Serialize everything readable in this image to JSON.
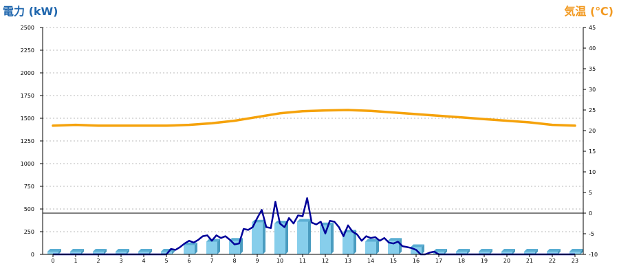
{
  "chart_data": {
    "type": "bar",
    "y_left_label": "電力 (kW)",
    "y_right_label": "気温 (℃)",
    "x_ticks": [
      0,
      1,
      2,
      3,
      4,
      5,
      6,
      7,
      8,
      9,
      10,
      11,
      12,
      13,
      14,
      15,
      16,
      17,
      18,
      19,
      20,
      21,
      22,
      23
    ],
    "y_left_ticks": [
      0,
      250,
      500,
      750,
      1000,
      1250,
      1500,
      1750,
      2000,
      2250,
      2500
    ],
    "y_right_ticks": [
      -10,
      -5,
      0,
      5,
      10,
      15,
      20,
      25,
      30,
      35,
      40,
      45
    ],
    "y_left_range": [
      0,
      2500
    ],
    "y_right_range": [
      -10,
      45
    ],
    "grid": true,
    "series": [
      {
        "values": [
          0,
          0,
          0,
          0,
          0,
          0,
          100,
          140,
          150,
          350,
          340,
          360,
          320,
          240,
          140,
          150,
          80,
          0,
          0,
          0,
          0,
          0,
          0,
          0
        ],
        "color": "#87ceeb"
      },
      {
        "x": [
          0,
          0.5,
          1,
          1.5,
          2,
          2.5,
          3,
          3.5,
          4,
          4.5,
          5,
          5.2,
          5.4,
          5.6,
          5.8,
          6.0,
          6.2,
          6.4,
          6.6,
          6.8,
          7.0,
          7.2,
          7.4,
          7.6,
          7.8,
          8.0,
          8.2,
          8.4,
          8.6,
          8.8,
          9.0,
          9.2,
          9.4,
          9.6,
          9.8,
          10.0,
          10.2,
          10.4,
          10.6,
          10.8,
          11.0,
          11.2,
          11.4,
          11.6,
          11.8,
          12.0,
          12.2,
          12.4,
          12.6,
          12.8,
          13.0,
          13.2,
          13.4,
          13.6,
          13.8,
          14.0,
          14.2,
          14.4,
          14.6,
          14.8,
          15.0,
          15.2,
          15.4,
          15.6,
          15.8,
          16.0,
          16.2,
          16.4,
          16.6,
          16.8,
          17.0,
          17.2,
          17.4,
          17.6,
          18,
          19,
          20,
          21,
          22,
          23
        ],
        "values": [
          0,
          0,
          0,
          0,
          0,
          0,
          0,
          0,
          0,
          0,
          0,
          60,
          50,
          80,
          120,
          150,
          130,
          160,
          200,
          210,
          150,
          210,
          180,
          200,
          160,
          110,
          120,
          280,
          270,
          300,
          400,
          490,
          300,
          290,
          580,
          340,
          300,
          400,
          340,
          430,
          420,
          620,
          350,
          330,
          360,
          230,
          370,
          360,
          300,
          200,
          320,
          250,
          220,
          150,
          200,
          180,
          190,
          150,
          180,
          130,
          120,
          140,
          90,
          80,
          70,
          50,
          0,
          0,
          20,
          30,
          0,
          0,
          0,
          0,
          0,
          0,
          0,
          0,
          0,
          0
        ],
        "color": "#000099"
      },
      {
        "values": [
          21.2,
          21.4,
          21.2,
          21.2,
          21.2,
          21.2,
          21.4,
          21.8,
          22.4,
          23.3,
          24.2,
          24.7,
          24.9,
          25.0,
          24.8,
          24.4,
          24.0,
          23.6,
          23.2,
          22.8,
          22.4,
          22.0,
          21.4,
          21.2
        ],
        "color": "#f5a20b",
        "axis": "right"
      }
    ]
  }
}
